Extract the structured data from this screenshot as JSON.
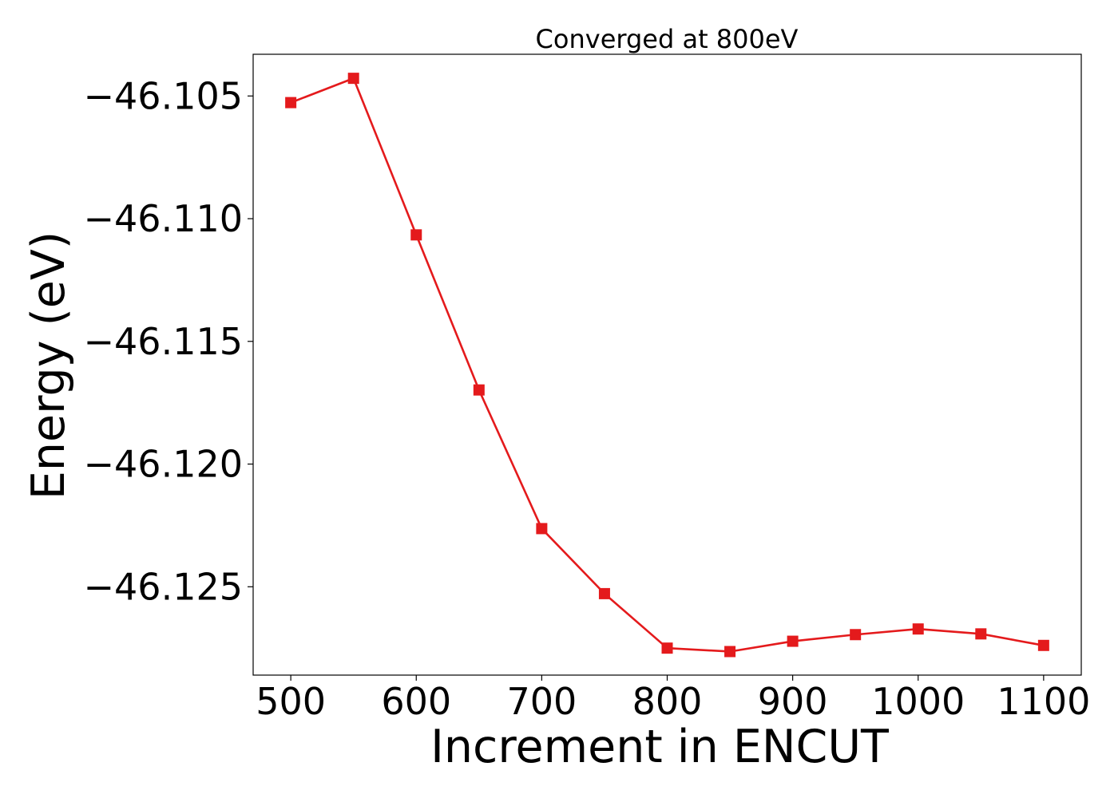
{
  "chart_data": {
    "type": "line",
    "title": "Converged at 800eV",
    "xlabel": "Increment in ENCUT",
    "ylabel": "Energy (eV)",
    "xlim": [
      470,
      1130
    ],
    "ylim": [
      -46.1286,
      -46.1033
    ],
    "xticks": [
      500,
      600,
      700,
      800,
      900,
      1000,
      1100
    ],
    "xtick_labels": [
      "500",
      "600",
      "700",
      "800",
      "900",
      "1000",
      "1100"
    ],
    "yticks": [
      -46.105,
      -46.11,
      -46.115,
      -46.12,
      -46.125
    ],
    "ytick_labels": [
      "−46.105",
      "−46.110",
      "−46.115",
      "−46.120",
      "−46.125"
    ],
    "grid": false,
    "marker": "square",
    "series": [
      {
        "color": "#e41a1c",
        "x": [
          500,
          550,
          600,
          650,
          700,
          750,
          800,
          850,
          900,
          950,
          1000,
          1050,
          1100
        ],
        "y": [
          -46.10527,
          -46.10428,
          -46.11066,
          -46.11698,
          -46.12263,
          -46.12528,
          -46.1275,
          -46.12764,
          -46.12722,
          -46.12695,
          -46.12672,
          -46.12692,
          -46.12739
        ]
      }
    ]
  }
}
